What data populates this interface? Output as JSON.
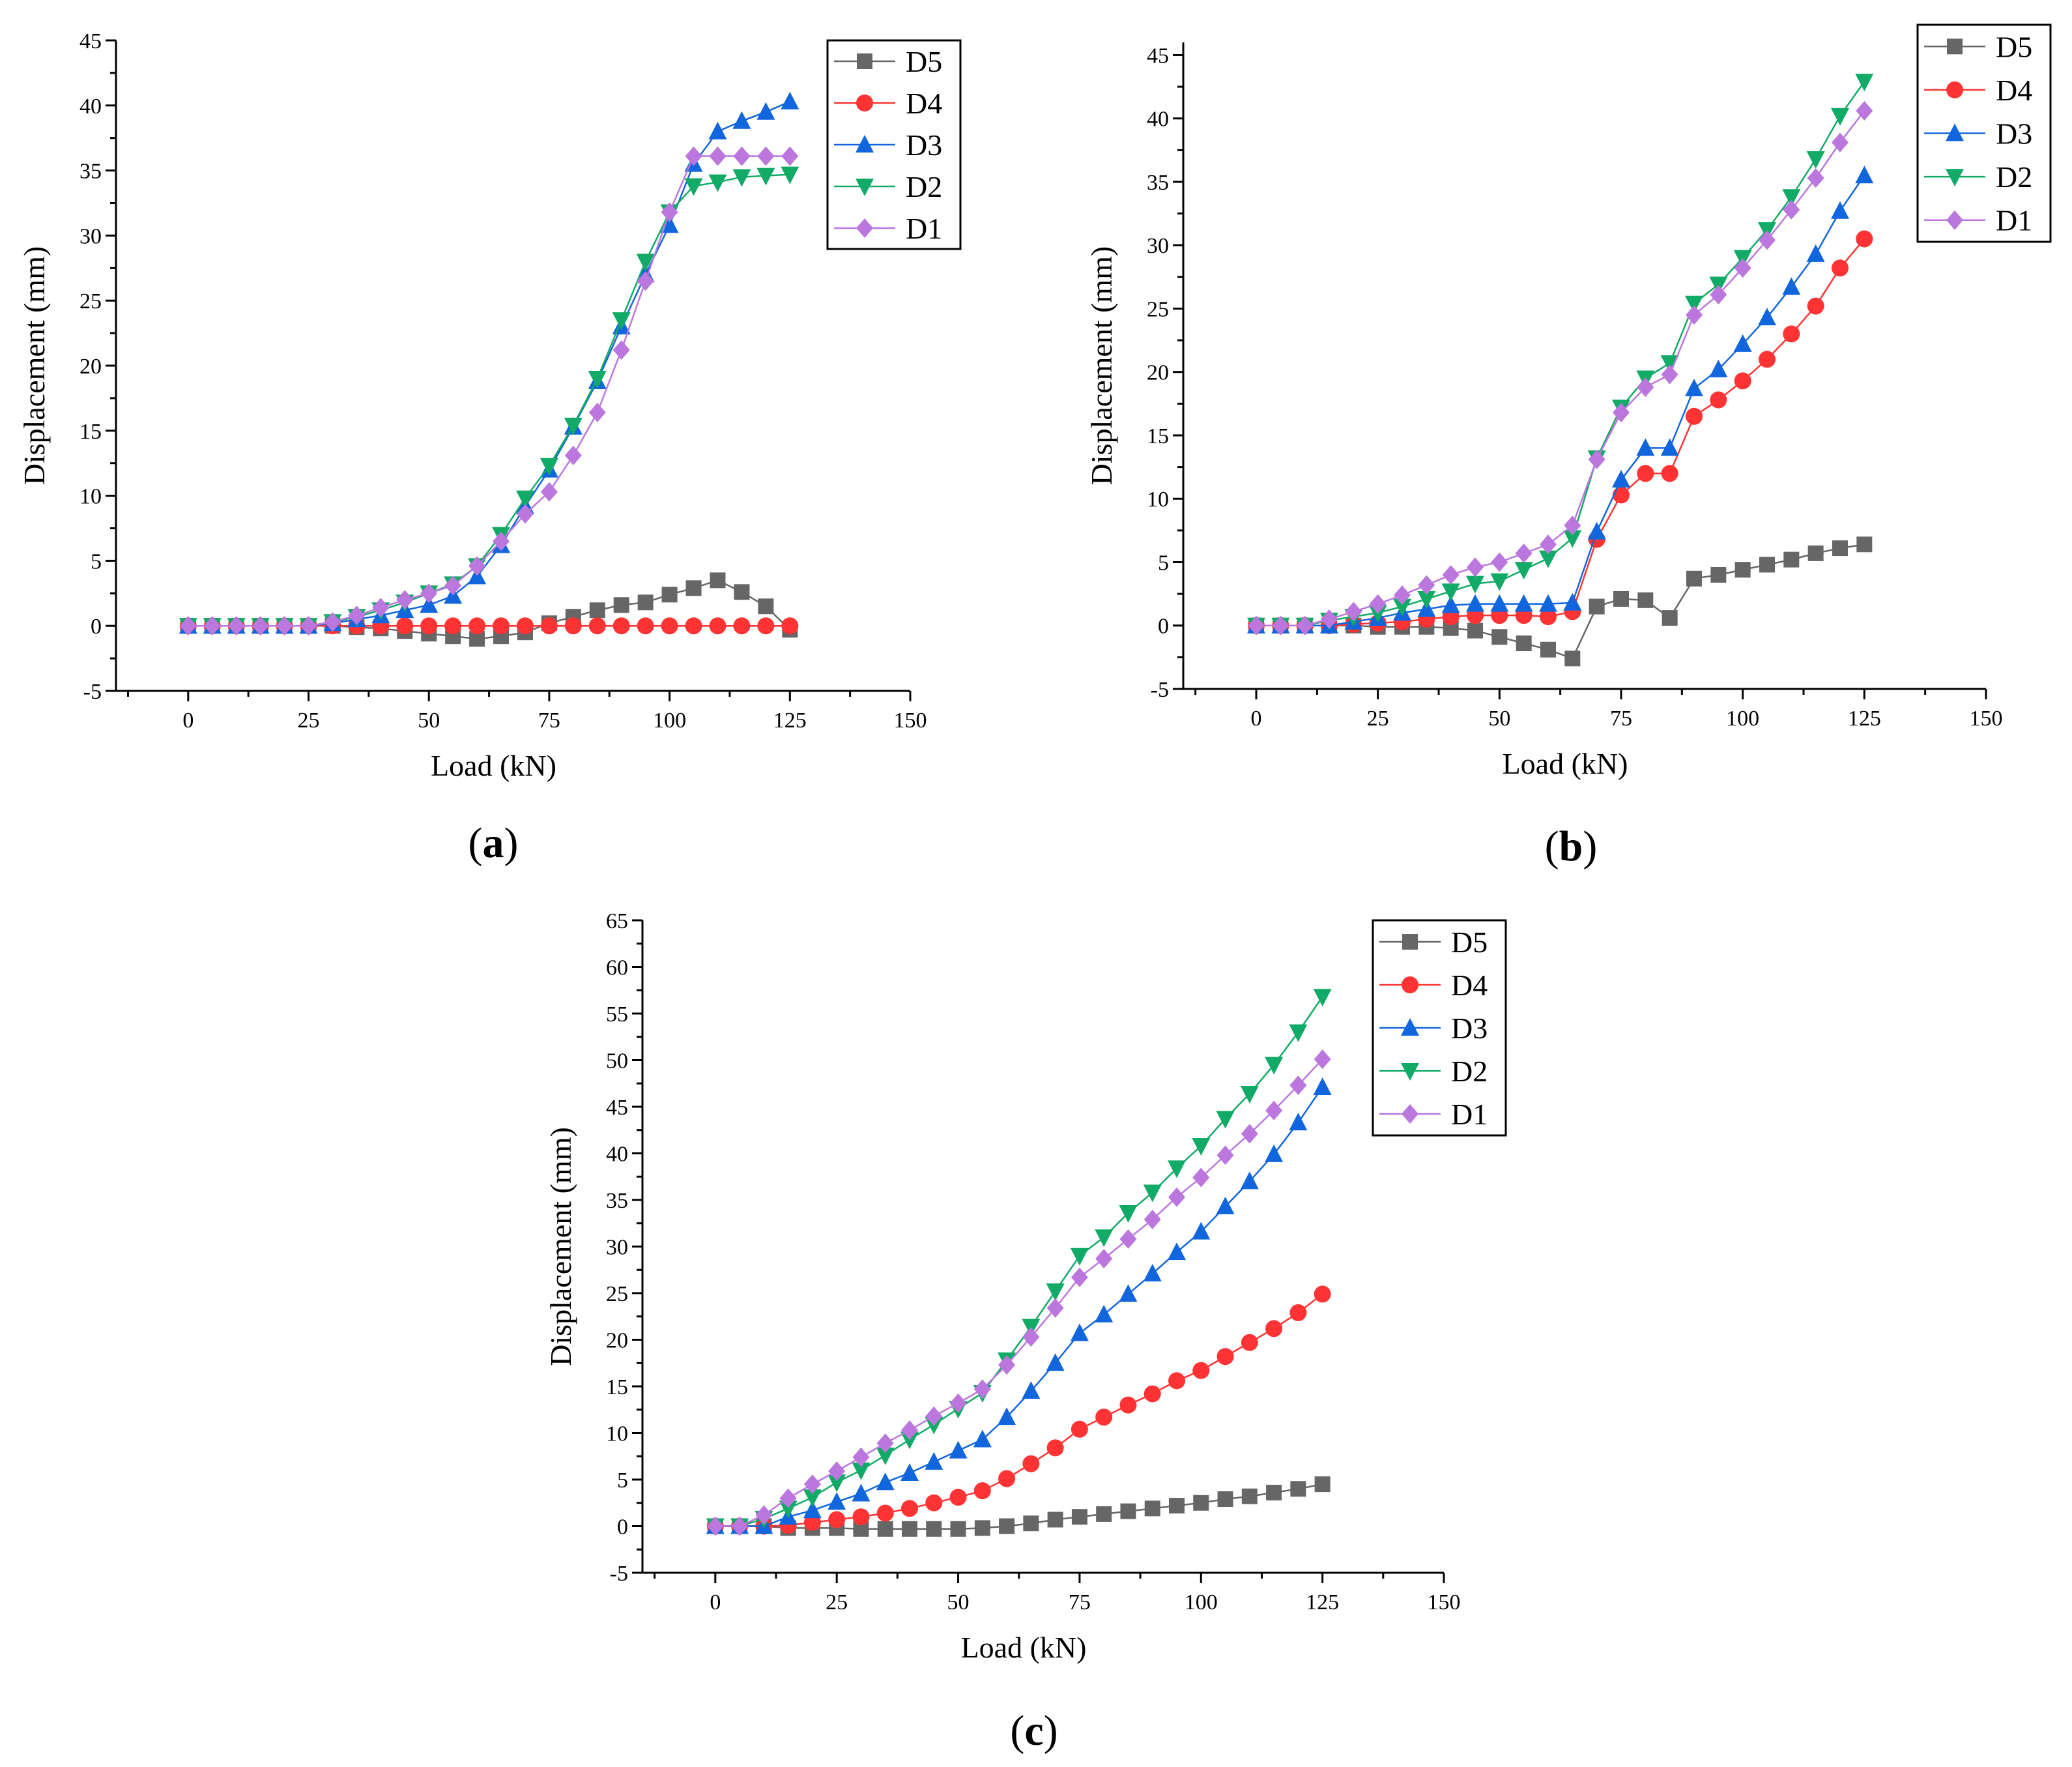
{
  "figure": {
    "panels": [
      "(a)",
      "(b)",
      "(c)"
    ]
  },
  "chart_data": [
    {
      "id": "a",
      "caption_letter": "a",
      "type": "line",
      "title": "",
      "xlabel": "Load (kN)",
      "ylabel": "Displacement (mm)",
      "xlim": [
        -15,
        150
      ],
      "ylim": [
        -5,
        45
      ],
      "xticks": [
        0,
        25,
        50,
        75,
        100,
        125,
        150
      ],
      "yticks": [
        -5,
        0,
        5,
        10,
        15,
        20,
        25,
        30,
        35,
        40,
        45
      ],
      "grid": false,
      "legend": "top-right",
      "x": [
        0,
        5,
        10,
        15,
        20,
        25,
        30,
        35,
        40,
        45,
        50,
        55,
        60,
        65,
        70,
        75,
        80,
        85,
        90,
        95,
        100,
        105,
        110,
        115,
        120,
        125
      ],
      "series": [
        {
          "name": "D5",
          "color": "#666666",
          "marker": "square",
          "values": [
            0,
            0,
            0,
            0,
            0,
            0,
            0,
            -0.1,
            -0.2,
            -0.4,
            -0.6,
            -0.8,
            -1.0,
            -0.8,
            -0.5,
            0.2,
            0.7,
            1.2,
            1.6,
            1.8,
            2.4,
            2.9,
            3.5,
            2.6,
            1.5,
            -0.3
          ]
        },
        {
          "name": "D4",
          "color": "#ff3333",
          "marker": "circle",
          "values": [
            0,
            0,
            0,
            0,
            0,
            0,
            0,
            0,
            0,
            0,
            0,
            0,
            0,
            0,
            0,
            0,
            0,
            0,
            0,
            0,
            0,
            0,
            0,
            0,
            0,
            0
          ]
        },
        {
          "name": "D3",
          "color": "#1166dd",
          "marker": "triangle-up",
          "values": [
            0,
            0,
            0,
            0,
            0,
            0,
            0.2,
            0.5,
            0.8,
            1.2,
            1.6,
            2.3,
            3.8,
            6.2,
            9.2,
            12.0,
            15.3,
            18.8,
            23.0,
            27.0,
            30.8,
            35.5,
            38.0,
            38.8,
            39.5,
            40.3
          ]
        },
        {
          "name": "D2",
          "color": "#11aa66",
          "marker": "triangle-down",
          "values": [
            0,
            0,
            0,
            0,
            0,
            0,
            0.3,
            0.7,
            1.2,
            1.8,
            2.5,
            3.2,
            4.6,
            7.0,
            9.8,
            12.3,
            15.4,
            19.0,
            23.5,
            28.0,
            31.8,
            33.8,
            34.1,
            34.5,
            34.6,
            34.7
          ]
        },
        {
          "name": "D1",
          "color": "#bb77dd",
          "marker": "diamond",
          "values": [
            0,
            0,
            0,
            0,
            0,
            0,
            0.3,
            0.8,
            1.4,
            2.0,
            2.5,
            3.1,
            4.6,
            6.5,
            8.6,
            10.3,
            13.1,
            16.4,
            21.2,
            26.5,
            31.8,
            36.1,
            36.1,
            36.1,
            36.1,
            36.1
          ]
        }
      ]
    },
    {
      "id": "b",
      "caption_letter": "b",
      "type": "line",
      "title": "",
      "xlabel": "Load (kN)",
      "ylabel": "Displacement (mm)",
      "xlim": [
        -15,
        150
      ],
      "ylim": [
        -5,
        46
      ],
      "xticks": [
        0,
        25,
        50,
        75,
        100,
        125,
        150
      ],
      "yticks": [
        -5,
        0,
        5,
        10,
        15,
        20,
        25,
        30,
        35,
        40,
        45
      ],
      "grid": false,
      "legend": "top-right",
      "x": [
        0,
        5,
        10,
        15,
        20,
        25,
        30,
        35,
        40,
        45,
        50,
        55,
        60,
        65,
        70,
        75,
        80,
        85,
        90,
        95,
        100,
        105,
        110,
        115,
        120,
        125
      ],
      "series": [
        {
          "name": "D5",
          "color": "#666666",
          "marker": "square",
          "values": [
            0,
            0,
            0,
            0,
            0,
            -0.1,
            -0.1,
            -0.1,
            -0.2,
            -0.4,
            -0.9,
            -1.4,
            -1.9,
            -2.6,
            1.5,
            2.1,
            2.0,
            0.6,
            3.7,
            4.0,
            4.4,
            4.8,
            5.2,
            5.7,
            6.1,
            6.4
          ]
        },
        {
          "name": "D4",
          "color": "#ff3333",
          "marker": "circle",
          "values": [
            0,
            0,
            0,
            0,
            0.1,
            0.2,
            0.3,
            0.5,
            0.7,
            0.8,
            0.8,
            0.8,
            0.7,
            1.1,
            6.8,
            10.3,
            12.0,
            12.0,
            16.5,
            17.8,
            19.3,
            21.0,
            23.0,
            25.2,
            28.2,
            30.5
          ]
        },
        {
          "name": "D3",
          "color": "#1166dd",
          "marker": "triangle-up",
          "values": [
            0,
            0,
            0,
            0,
            0.3,
            0.6,
            1.0,
            1.3,
            1.6,
            1.7,
            1.7,
            1.7,
            1.7,
            1.8,
            7.4,
            11.5,
            14.0,
            14.0,
            18.7,
            20.2,
            22.2,
            24.3,
            26.7,
            29.3,
            32.7,
            35.5
          ]
        },
        {
          "name": "D2",
          "color": "#11aa66",
          "marker": "triangle-down",
          "values": [
            0,
            0,
            0,
            0.4,
            0.7,
            1.0,
            1.5,
            2.1,
            2.7,
            3.3,
            3.5,
            4.4,
            5.3,
            6.9,
            13.2,
            17.2,
            19.5,
            20.7,
            25.4,
            26.9,
            29.0,
            31.2,
            33.8,
            36.8,
            40.2,
            42.9
          ]
        },
        {
          "name": "D1",
          "color": "#bb77dd",
          "marker": "diamond",
          "values": [
            0,
            0,
            0,
            0.5,
            1.1,
            1.7,
            2.4,
            3.2,
            4.0,
            4.6,
            5.0,
            5.7,
            6.4,
            7.9,
            13.1,
            16.8,
            18.8,
            19.8,
            24.5,
            26.1,
            28.2,
            30.4,
            32.8,
            35.3,
            38.1,
            40.6
          ]
        }
      ]
    },
    {
      "id": "c",
      "caption_letter": "c",
      "type": "line",
      "title": "",
      "xlabel": "Load (kN)",
      "ylabel": "Displacement (mm)",
      "xlim": [
        -15,
        150
      ],
      "ylim": [
        -5,
        65
      ],
      "xticks": [
        0,
        25,
        50,
        75,
        100,
        125,
        150
      ],
      "yticks": [
        -5,
        0,
        5,
        10,
        15,
        20,
        25,
        30,
        35,
        40,
        45,
        50,
        55,
        60,
        65
      ],
      "grid": false,
      "legend": "top-right",
      "x": [
        0,
        5,
        10,
        15,
        20,
        25,
        30,
        35,
        40,
        45,
        50,
        55,
        60,
        65,
        70,
        75,
        80,
        85,
        90,
        95,
        100,
        105,
        110,
        115,
        120,
        125
      ],
      "series": [
        {
          "name": "D5",
          "color": "#666666",
          "marker": "square",
          "values": [
            0,
            0,
            0,
            -0.2,
            -0.2,
            -0.2,
            -0.3,
            -0.3,
            -0.3,
            -0.3,
            -0.3,
            -0.2,
            0,
            0.3,
            0.7,
            1.0,
            1.3,
            1.6,
            1.9,
            2.2,
            2.5,
            2.9,
            3.2,
            3.6,
            4.0,
            4.5
          ]
        },
        {
          "name": "D4",
          "color": "#ff3333",
          "marker": "circle",
          "values": [
            0,
            0,
            0,
            0.1,
            0.4,
            0.7,
            1.0,
            1.4,
            1.9,
            2.5,
            3.1,
            3.8,
            5.1,
            6.7,
            8.4,
            10.4,
            11.7,
            13.0,
            14.2,
            15.6,
            16.7,
            18.2,
            19.7,
            21.2,
            22.9,
            24.9
          ]
        },
        {
          "name": "D3",
          "color": "#1166dd",
          "marker": "triangle-up",
          "values": [
            0,
            0,
            0,
            1.0,
            1.7,
            2.6,
            3.5,
            4.7,
            5.7,
            6.9,
            8.1,
            9.3,
            11.7,
            14.5,
            17.5,
            20.7,
            22.7,
            24.9,
            27.1,
            29.4,
            31.6,
            34.3,
            37.0,
            39.9,
            43.3,
            47.1
          ]
        },
        {
          "name": "D2",
          "color": "#11aa66",
          "marker": "triangle-down",
          "values": [
            0,
            0,
            0.8,
            1.9,
            3.1,
            4.7,
            6.0,
            7.6,
            9.3,
            10.9,
            12.6,
            14.3,
            17.8,
            21.4,
            25.2,
            29.0,
            31.0,
            33.6,
            35.8,
            38.4,
            40.8,
            43.7,
            46.4,
            49.5,
            53.0,
            56.8
          ]
        },
        {
          "name": "D1",
          "color": "#bb77dd",
          "marker": "diamond",
          "values": [
            0,
            0,
            1.2,
            3.0,
            4.5,
            5.9,
            7.4,
            8.9,
            10.3,
            11.8,
            13.2,
            14.7,
            17.3,
            20.3,
            23.4,
            26.7,
            28.7,
            30.8,
            32.9,
            35.3,
            37.4,
            39.8,
            42.1,
            44.6,
            47.3,
            50.1
          ]
        }
      ]
    }
  ]
}
